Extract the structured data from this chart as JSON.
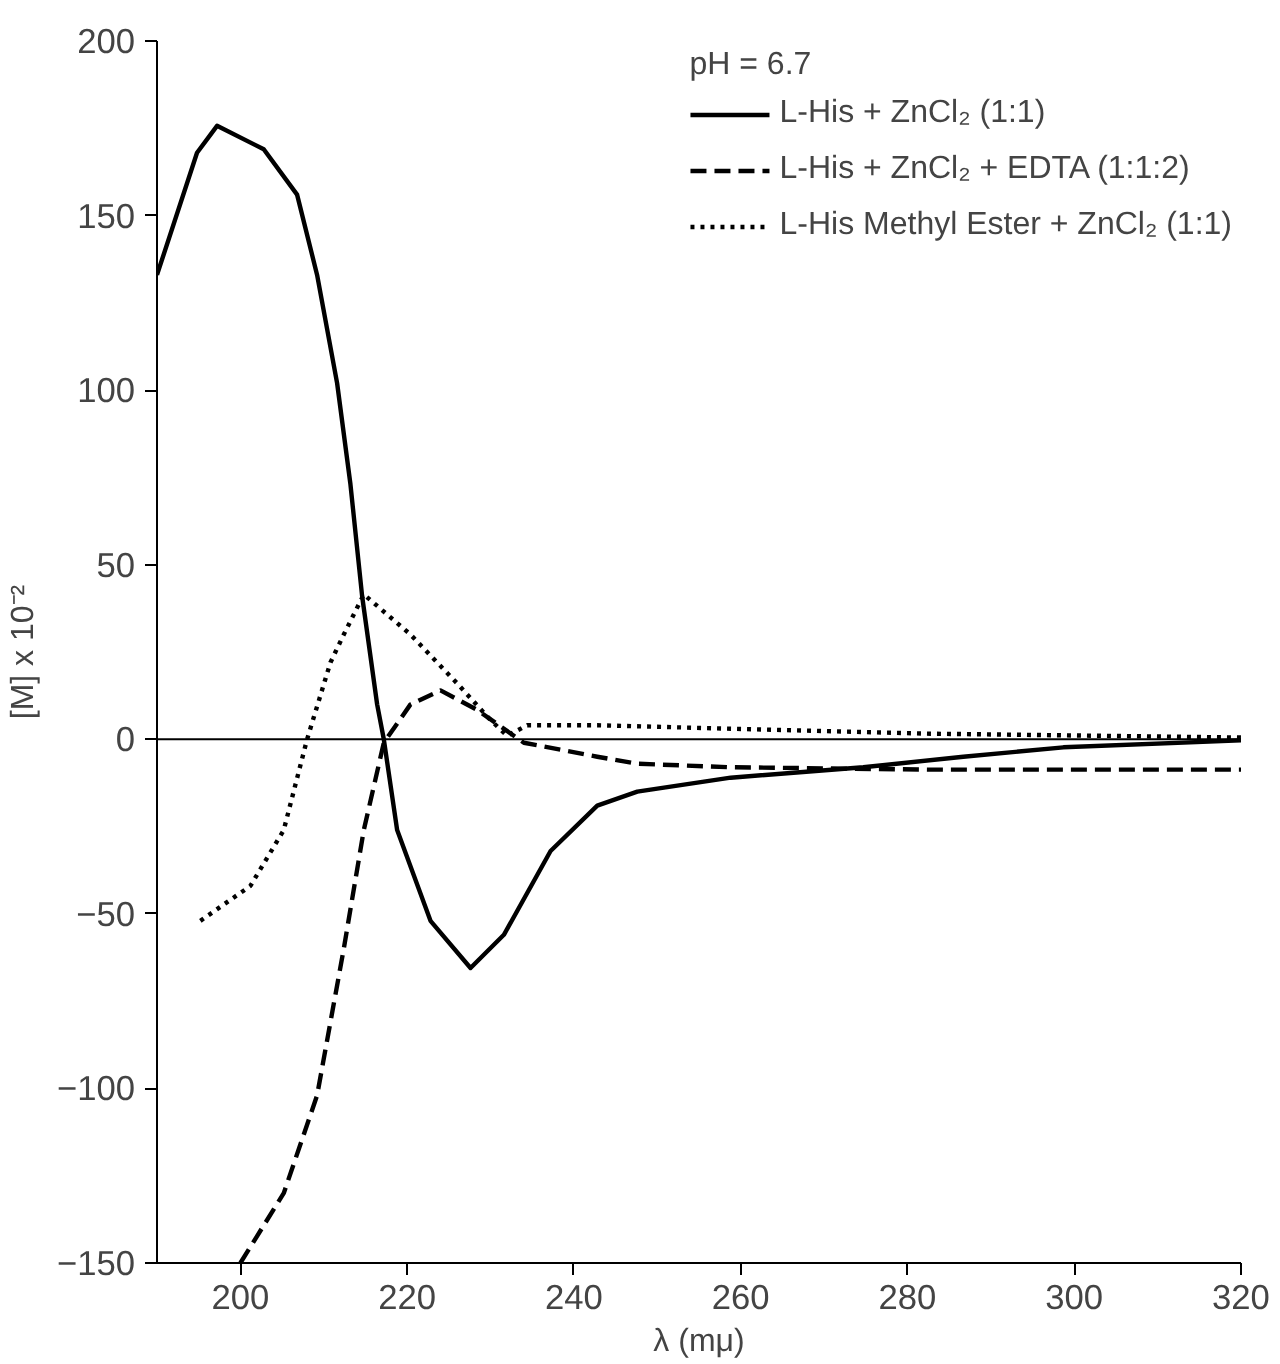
{
  "chart_data": {
    "type": "line",
    "xlabel": "λ (mμ)",
    "ylabel": "[M] x 10⁻²",
    "legend_title": "pH = 6.7",
    "legend": "top right",
    "grid": false,
    "xlim": [
      190,
      320
    ],
    "ylim": [
      -150,
      200
    ],
    "xticks": [
      200,
      220,
      240,
      260,
      280,
      300,
      320
    ],
    "yticks": [
      -150,
      -100,
      -50,
      0,
      50,
      100,
      150,
      200
    ],
    "ref_lines": [
      {
        "axis": "y",
        "value": 0,
        "color": "#000000",
        "line_style": "solid"
      }
    ],
    "series": [
      {
        "name": "L-His + ZnCl₂ (1:1)",
        "color": "#000000",
        "line_style": "solid",
        "x": [
          190,
          194.8,
          197.2,
          202.8,
          206.8,
          209.2,
          211.6,
          213.2,
          214.6,
          216.4,
          217.2,
          218.8,
          222.8,
          227.6,
          231.6,
          237.2,
          242.8,
          247.6,
          258.8,
          274.7,
          286.7,
          298.7,
          320
        ],
        "values": [
          133,
          168,
          175.7,
          169,
          156,
          133,
          102,
          73,
          41,
          10,
          0,
          -26,
          -52,
          -65.5,
          -56,
          -32,
          -19,
          -15,
          -11,
          -8,
          -5,
          -2.3,
          -0.3
        ]
      },
      {
        "name": "L-His + ZnCl₂ + EDTA (1:1:2)",
        "color": "#000000",
        "line_style": "dashed",
        "x": [
          200,
          205.2,
          209.2,
          212.4,
          214.8,
          217.2,
          220.4,
          224,
          228.4,
          234,
          242.8,
          247.6,
          258.8,
          282.8,
          320
        ],
        "values": [
          -150,
          -130,
          -102,
          -60,
          -26,
          -1,
          10,
          14,
          8.4,
          -1,
          -5,
          -7,
          -8,
          -8.7,
          -8.7
        ]
      },
      {
        "name": "L-His Methyl Ester + ZnCl₂ (1:1)",
        "color": "#000000",
        "line_style": "dotted",
        "x": [
          195.2,
          201.2,
          205.2,
          208,
          210.8,
          212.4,
          214.8,
          220.4,
          226,
          230,
          232,
          234.4,
          242.8,
          282.8,
          320
        ],
        "values": [
          -52,
          -42,
          -26,
          0,
          22,
          30,
          41.5,
          30,
          16,
          5.5,
          1,
          4,
          4,
          1.6,
          0.5
        ]
      }
    ]
  }
}
